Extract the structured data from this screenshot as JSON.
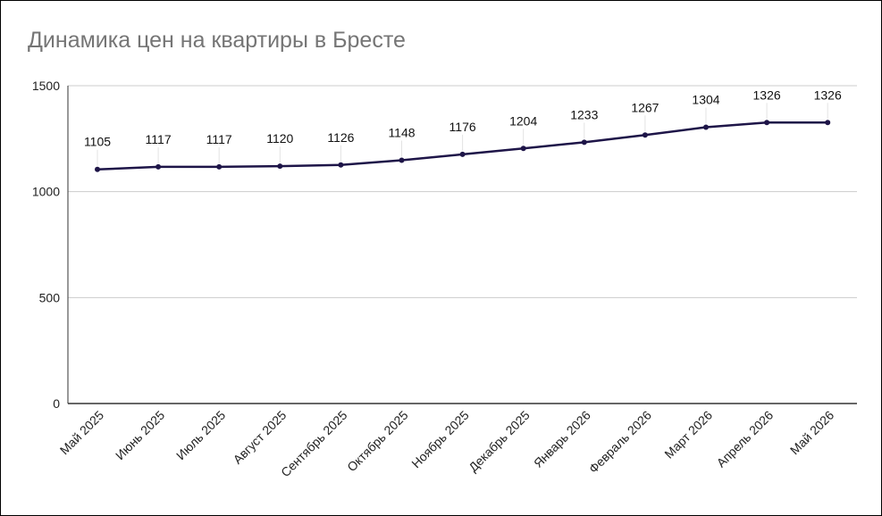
{
  "chart_data": {
    "type": "line",
    "title": "Динамика цен на квартиры в Бресте",
    "xlabel": "",
    "ylabel": "",
    "categories": [
      "Май 2025",
      "Июнь 2025",
      "Июль 2025",
      "Август 2025",
      "Сентябрь 2025",
      "Октябрь 2025",
      "Ноябрь 2025",
      "Декабрь 2025",
      "Январь 2026",
      "Февраль 2026",
      "Март 2026",
      "Апрель 2026",
      "Май 2026"
    ],
    "series": [
      {
        "values": [
          1105,
          1117,
          1117,
          1120,
          1126,
          1148,
          1176,
          1204,
          1233,
          1267,
          1304,
          1326,
          1326
        ]
      }
    ],
    "ylim": [
      0,
      1500
    ],
    "yticks": [
      "0",
      "500",
      "1000",
      "1500"
    ],
    "grid": true,
    "legend": "none",
    "colors": {
      "line": "#1e1548",
      "grid": "#cccccc",
      "axis": "#333333",
      "title": "#757575"
    }
  }
}
